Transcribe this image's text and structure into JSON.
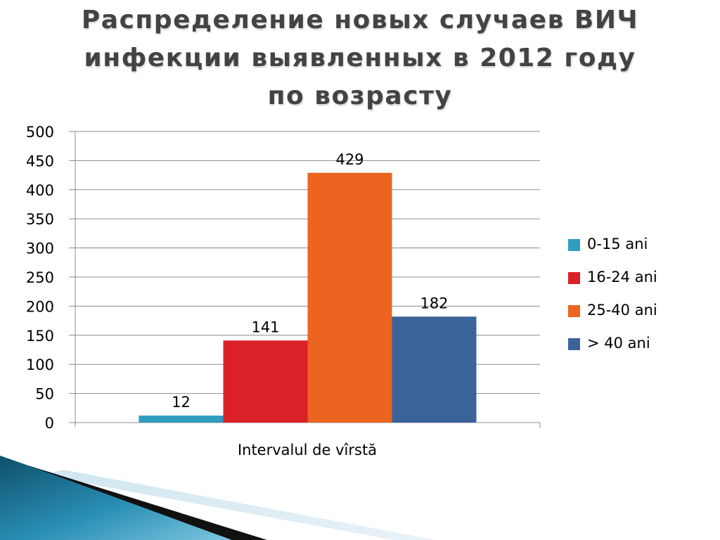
{
  "slide": {
    "title": "Распределение новых случаев ВИЧ инфекции выявленных в 2012 году по возрасту"
  },
  "chart_data": {
    "type": "bar",
    "title": "",
    "xlabel": "Intervalul de vîrstă",
    "ylabel": "",
    "ylim": [
      0,
      500
    ],
    "yticks": [
      0,
      50,
      100,
      150,
      200,
      250,
      300,
      350,
      400,
      450,
      500
    ],
    "grid": true,
    "legend_position": "right",
    "categories": [
      "Intervalul de vîrstă"
    ],
    "series": [
      {
        "name": "0-15 ani",
        "values": [
          12
        ],
        "color": "#2E9DBF"
      },
      {
        "name": "16-24 ani",
        "values": [
          141
        ],
        "color": "#DB2128"
      },
      {
        "name": "25-40 ani",
        "values": [
          429
        ],
        "color": "#EB6420"
      },
      {
        "name": "> 40 ani",
        "values": [
          182
        ],
        "color": "#3A639A"
      }
    ]
  }
}
